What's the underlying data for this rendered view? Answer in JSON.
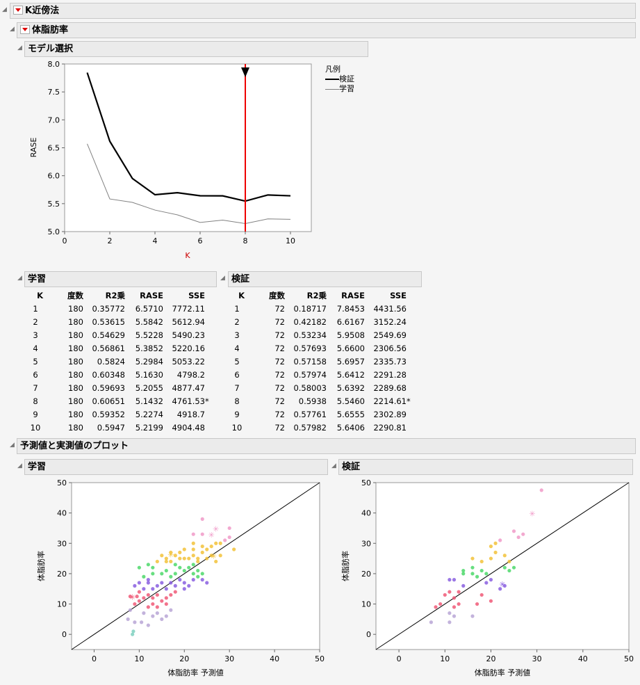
{
  "headers": {
    "knn": "K近傍法",
    "target": "体脂肪率",
    "model_select": "モデル選択",
    "train_table": "学習",
    "valid_table": "検証",
    "pred_plot": "予測値と実測値のプロット",
    "train_plot": "学習",
    "valid_plot": "検証"
  },
  "legend": {
    "title": "凡例",
    "valid": "検証",
    "train": "学習"
  },
  "table_columns": [
    "K",
    "度数",
    "R2乗",
    "RASE",
    "SSE"
  ],
  "train_rows": [
    [
      "1",
      "180",
      "0.35772",
      "6.5710",
      "7772.11",
      ""
    ],
    [
      "2",
      "180",
      "0.53615",
      "5.5842",
      "5612.94",
      ""
    ],
    [
      "3",
      "180",
      "0.54629",
      "5.5228",
      "5490.23",
      ""
    ],
    [
      "4",
      "180",
      "0.56861",
      "5.3852",
      "5220.16",
      ""
    ],
    [
      "5",
      "180",
      "0.5824",
      "5.2984",
      "5053.22",
      ""
    ],
    [
      "6",
      "180",
      "0.60348",
      "5.1630",
      "4798.2",
      ""
    ],
    [
      "7",
      "180",
      "0.59693",
      "5.2055",
      "4877.47",
      ""
    ],
    [
      "8",
      "180",
      "0.60651",
      "5.1432",
      "4761.53",
      "*"
    ],
    [
      "9",
      "180",
      "0.59352",
      "5.2274",
      "4918.7",
      ""
    ],
    [
      "10",
      "180",
      "0.5947",
      "5.2199",
      "4904.48",
      ""
    ]
  ],
  "valid_rows": [
    [
      "1",
      "72",
      "0.18717",
      "7.8453",
      "4431.56",
      ""
    ],
    [
      "2",
      "72",
      "0.42182",
      "6.6167",
      "3152.24",
      ""
    ],
    [
      "3",
      "72",
      "0.53234",
      "5.9508",
      "2549.69",
      ""
    ],
    [
      "4",
      "72",
      "0.57693",
      "5.6600",
      "2306.56",
      ""
    ],
    [
      "5",
      "72",
      "0.57158",
      "5.6957",
      "2335.73",
      ""
    ],
    [
      "6",
      "72",
      "0.57974",
      "5.6412",
      "2291.28",
      ""
    ],
    [
      "7",
      "72",
      "0.58003",
      "5.6392",
      "2289.68",
      ""
    ],
    [
      "8",
      "72",
      "0.5938",
      "5.5460",
      "2214.61",
      "*"
    ],
    [
      "9",
      "72",
      "0.57761",
      "5.6555",
      "2302.89",
      ""
    ],
    [
      "10",
      "72",
      "0.57982",
      "5.6406",
      "2290.81",
      ""
    ]
  ],
  "chart_data": [
    {
      "type": "line",
      "xlabel": "K",
      "ylabel": "RASE",
      "xlim": [
        0,
        10.9
      ],
      "ylim": [
        5.0,
        8.0
      ],
      "xticks": [
        "0",
        "2",
        "4",
        "6",
        "8",
        "10"
      ],
      "yticks": [
        "5.0",
        "5.5",
        "6.0",
        "6.5",
        "7.0",
        "7.5",
        "8.0"
      ],
      "selected_k": 8,
      "x": [
        1,
        2,
        3,
        4,
        5,
        6,
        7,
        8,
        9,
        10
      ],
      "series": [
        {
          "name": "検証",
          "values": [
            7.8453,
            6.6167,
            5.9508,
            5.66,
            5.6957,
            5.6412,
            5.6392,
            5.546,
            5.6555,
            5.6406
          ],
          "color": "#000000"
        },
        {
          "name": "学習",
          "values": [
            6.571,
            5.5842,
            5.5228,
            5.3852,
            5.2984,
            5.163,
            5.2055,
            5.1432,
            5.2274,
            5.2199
          ],
          "color": "#808080"
        }
      ]
    },
    {
      "type": "scatter",
      "xlabel": "体脂肪率 予測値",
      "ylabel": "体脂肪率",
      "xlim": [
        -5,
        50
      ],
      "ylim": [
        -5,
        50
      ],
      "xticks": [
        "0",
        "10",
        "20",
        "30",
        "40",
        "50"
      ],
      "yticks": [
        "0",
        "10",
        "20",
        "30",
        "40",
        "50"
      ],
      "points": [
        [
          8.5,
          0
        ],
        [
          8.7,
          1
        ],
        [
          7.5,
          5
        ],
        [
          9,
          4
        ],
        [
          10.5,
          4
        ],
        [
          12,
          3
        ],
        [
          11,
          7
        ],
        [
          13,
          6
        ],
        [
          14,
          7
        ],
        [
          15,
          5
        ],
        [
          16,
          6
        ],
        [
          17,
          8
        ],
        [
          13,
          10
        ],
        [
          14,
          9
        ],
        [
          16,
          10
        ],
        [
          12,
          9
        ],
        [
          8,
          8
        ],
        [
          9,
          10
        ],
        [
          10,
          11
        ],
        [
          11,
          12
        ],
        [
          12,
          13
        ],
        [
          13,
          12
        ],
        [
          14,
          13
        ],
        [
          15,
          11
        ],
        [
          16,
          12
        ],
        [
          17,
          13
        ],
        [
          18,
          14
        ],
        [
          13,
          15
        ],
        [
          14,
          16
        ],
        [
          15,
          17
        ],
        [
          16,
          15
        ],
        [
          17,
          17
        ],
        [
          18,
          16
        ],
        [
          19,
          18
        ],
        [
          20,
          17
        ],
        [
          21,
          16
        ],
        [
          20,
          15
        ],
        [
          22,
          18
        ],
        [
          8,
          12.5
        ],
        [
          9.5,
          12.5
        ],
        [
          10,
          14
        ],
        [
          11,
          15
        ],
        [
          12,
          17
        ],
        [
          10,
          17
        ],
        [
          11,
          19
        ],
        [
          12,
          18
        ],
        [
          13,
          20
        ],
        [
          15,
          20
        ],
        [
          16,
          21
        ],
        [
          17,
          19
        ],
        [
          18,
          20
        ],
        [
          19,
          22
        ],
        [
          20,
          21
        ],
        [
          21,
          22
        ],
        [
          22,
          20
        ],
        [
          23,
          19
        ],
        [
          24,
          18
        ],
        [
          25,
          17
        ],
        [
          23,
          21
        ],
        [
          24,
          20
        ],
        [
          22,
          23
        ],
        [
          23,
          24
        ],
        [
          21,
          25
        ],
        [
          20,
          25
        ],
        [
          19,
          25
        ],
        [
          18,
          26
        ],
        [
          17,
          24
        ],
        [
          16,
          25
        ],
        [
          22,
          26
        ],
        [
          23,
          25
        ],
        [
          24,
          27
        ],
        [
          25,
          28
        ],
        [
          26,
          29
        ],
        [
          27,
          30
        ],
        [
          28,
          30
        ],
        [
          29,
          31
        ],
        [
          30,
          32
        ],
        [
          24,
          29
        ],
        [
          22,
          28
        ],
        [
          22,
          30
        ],
        [
          24,
          33
        ],
        [
          22,
          33
        ],
        [
          24,
          38
        ],
        [
          25,
          25
        ],
        [
          26,
          26
        ],
        [
          27,
          24
        ],
        [
          28,
          26
        ],
        [
          31,
          28
        ],
        [
          30,
          35
        ],
        [
          12,
          23
        ],
        [
          10,
          22
        ],
        [
          13,
          22
        ],
        [
          14,
          24
        ],
        [
          15,
          26
        ],
        [
          16,
          24
        ],
        [
          9,
          16
        ],
        [
          18,
          23
        ],
        [
          19,
          27
        ],
        [
          20,
          28
        ],
        [
          17,
          27
        ]
      ],
      "stars": [
        [
          27,
          35
        ],
        [
          26,
          33
        ],
        [
          26.5,
          26
        ],
        [
          17,
          26.5
        ],
        [
          8.5,
          12.5
        ]
      ]
    },
    {
      "type": "scatter",
      "xlabel": "体脂肪率 予測値",
      "ylabel": "体脂肪率",
      "xlim": [
        -5,
        50
      ],
      "ylim": [
        -5,
        50
      ],
      "xticks": [
        "0",
        "10",
        "20",
        "30",
        "40",
        "50"
      ],
      "yticks": [
        "0",
        "10",
        "20",
        "30",
        "40",
        "50"
      ],
      "points": [
        [
          7,
          4
        ],
        [
          8,
          9
        ],
        [
          9,
          10
        ],
        [
          10,
          13
        ],
        [
          11,
          14
        ],
        [
          11,
          4
        ],
        [
          12,
          6
        ],
        [
          11,
          7
        ],
        [
          12,
          9
        ],
        [
          13,
          10
        ],
        [
          12,
          12
        ],
        [
          13,
          14
        ],
        [
          14,
          16
        ],
        [
          12,
          18
        ],
        [
          11,
          18
        ],
        [
          14,
          20
        ],
        [
          14,
          21
        ],
        [
          16,
          20
        ],
        [
          17,
          19
        ],
        [
          16,
          22
        ],
        [
          18,
          21
        ],
        [
          19,
          20
        ],
        [
          20,
          18
        ],
        [
          20,
          11
        ],
        [
          16,
          6
        ],
        [
          17,
          10
        ],
        [
          18,
          13
        ],
        [
          16,
          25
        ],
        [
          18,
          24
        ],
        [
          20,
          25
        ],
        [
          21,
          27
        ],
        [
          21,
          30
        ],
        [
          22,
          31
        ],
        [
          20,
          29
        ],
        [
          23,
          26
        ],
        [
          24,
          24
        ],
        [
          23,
          22
        ],
        [
          25,
          34
        ],
        [
          26,
          32
        ],
        [
          27,
          33
        ],
        [
          23,
          16
        ],
        [
          22,
          15
        ],
        [
          31,
          47.5
        ],
        [
          24,
          21
        ],
        [
          25,
          22
        ],
        [
          19,
          17
        ]
      ],
      "stars": [
        [
          29,
          40
        ],
        [
          22.5,
          16.8
        ]
      ]
    }
  ]
}
